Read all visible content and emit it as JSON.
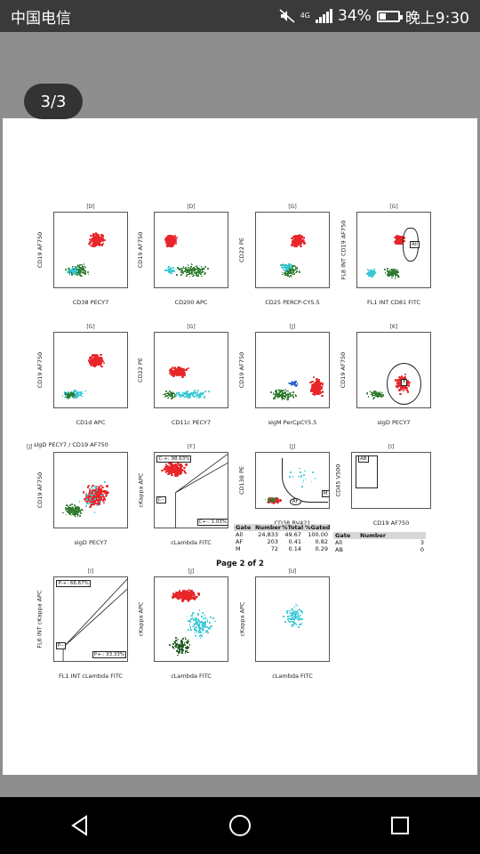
{
  "status_bar": {
    "carrier": "中国电信",
    "network": "4G",
    "battery_percent": "34%",
    "battery_level": 0.34,
    "time": "晚上9:30"
  },
  "viewer": {
    "page_indicator": "3/3"
  },
  "colors": {
    "red": "#e8262a",
    "green": "#2f7a2f",
    "cyan": "#36c8d6",
    "blue": "#2a60c8",
    "darkgreen": "#1f5a1f"
  },
  "plots": [
    {
      "gate": "[D]",
      "ylabel": "CD19 AF750",
      "xlabel": "CD38 PECY7"
    },
    {
      "gate": "[D]",
      "ylabel": "CD19 AF750",
      "xlabel": "CD200 APC"
    },
    {
      "gate": "[G]",
      "ylabel": "CD22 PE",
      "xlabel": "CD25 PERCP-CY5.5"
    },
    {
      "gate": "[G]",
      "ylabel": "FL8 INT CD19 AF750",
      "xlabel": "FL1 INT CD81 FITC",
      "gate_label": "All"
    },
    {
      "gate": "[G]",
      "ylabel": "CD19 AF750",
      "xlabel": "CD1d APC"
    },
    {
      "gate": "[G]",
      "ylabel": "CD22 PE",
      "xlabel": "CD11c PECY7"
    },
    {
      "gate": "[J]",
      "ylabel": "CD19 AF750",
      "xlabel": "sIgM PerCpCY5.5"
    },
    {
      "gate": "[K]",
      "ylabel": "CD19 AF750",
      "xlabel": "sIgD PECY7",
      "gate_label": "F"
    },
    {
      "gate": "[J]",
      "title": "sIgD PECY7 / CD19 AF750",
      "ylabel": "CD19 AF750",
      "xlabel": "sIgD PECY7"
    },
    {
      "gate": "[F]",
      "ylabel": "cKappa APC",
      "xlabel": "cLambda FITC",
      "q1": "C-+: 98.63%",
      "q2": "C+-: 1.03%",
      "q3": "C--"
    },
    {
      "gate": "[J]",
      "ylabel": "CD138 PE",
      "xlabel": "CD38 BV421",
      "gate_label": "M",
      "gate_label2": "AF"
    },
    {
      "gate": "[I]",
      "ylabel": "CD45 V500",
      "xlabel": "CD19 AF750",
      "gate_label": "AB"
    },
    {
      "gate": "[I]",
      "ylabel": "FL6 INT cKappa APC",
      "xlabel": "FL1 INT cLambda FITC",
      "q1": "P-+: 66.67%",
      "q2": "P+-: 33.33%",
      "q3": "P--"
    },
    {
      "gate": "[J]",
      "ylabel": "cKappa APC",
      "xlabel": "cLambda FITC"
    },
    {
      "gate": "[U]",
      "ylabel": "cKappa APC",
      "xlabel": "cLambda FITC"
    }
  ],
  "table1": {
    "headers": [
      "Gate",
      "Number",
      "%Total",
      "%Gated"
    ],
    "rows": [
      [
        "All",
        "24,833",
        "49.67",
        "100.00"
      ],
      [
        "AF",
        "203",
        "0.41",
        "0.82"
      ],
      [
        "M",
        "72",
        "0.14",
        "0.29"
      ]
    ]
  },
  "table2": {
    "headers": [
      "Gate",
      "Number"
    ],
    "rows": [
      [
        "All",
        "3"
      ],
      [
        "AB",
        "0"
      ]
    ]
  },
  "page_caption": "Page 2 of 2"
}
